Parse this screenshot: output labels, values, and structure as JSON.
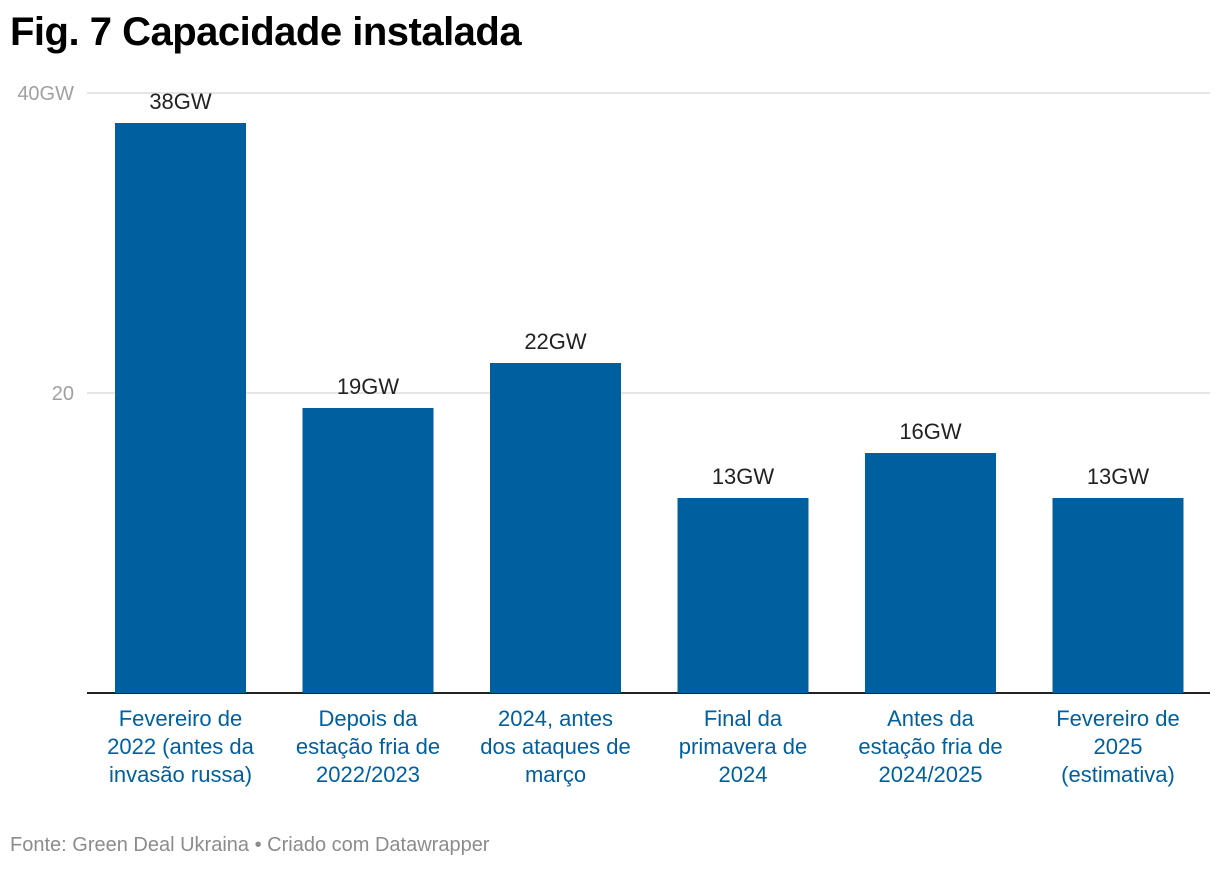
{
  "title": "Fig. 7 Capacidade instalada",
  "footer": {
    "source": "Fonte: Green Deal Ukraina",
    "separator": "•",
    "credit": "Criado com Datawrapper"
  },
  "colors": {
    "bar": "#00609f",
    "category_label": "#00609f",
    "value_label": "#222222",
    "tick_label": "#a0a0a0",
    "grid": "#dddddd",
    "baseline": "#222222"
  },
  "chart_data": {
    "type": "bar",
    "categories": [
      [
        "Fevereiro de",
        "2022 (antes da",
        "invasão russa)"
      ],
      [
        "Depois da",
        "estação fria de",
        "2022/2023"
      ],
      [
        "2024, antes",
        "dos ataques de",
        "março"
      ],
      [
        "Final da",
        "primavera de",
        "2024"
      ],
      [
        "Antes da",
        "estação fria de",
        "2024/2025"
      ],
      [
        "Fevereiro de",
        "2025",
        "(estimativa)"
      ]
    ],
    "values": [
      38,
      19,
      22,
      13,
      16,
      13
    ],
    "value_labels": [
      "38GW",
      "19GW",
      "22GW",
      "13GW",
      "16GW",
      "13GW"
    ],
    "yticks": [
      {
        "value": 20,
        "label": "20"
      },
      {
        "value": 40,
        "label": "40GW"
      }
    ],
    "ylim": [
      0,
      40
    ],
    "grid": true
  }
}
